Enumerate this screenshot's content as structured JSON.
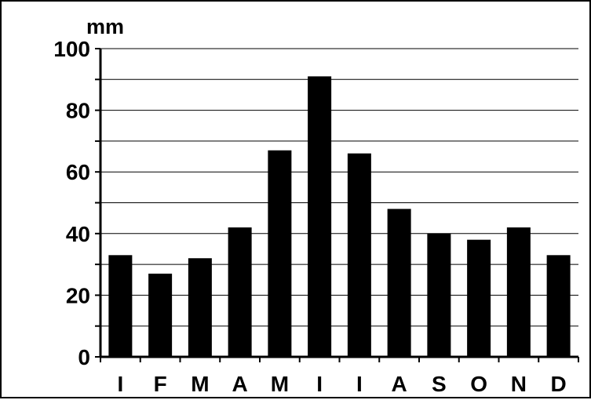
{
  "chart_data": {
    "type": "bar",
    "unit_label": "mm",
    "categories": [
      "I",
      "F",
      "M",
      "A",
      "M",
      "I",
      "I",
      "A",
      "S",
      "O",
      "N",
      "D"
    ],
    "values": [
      33,
      27,
      32,
      42,
      67,
      91,
      66,
      48,
      40,
      38,
      42,
      33
    ],
    "ylim": [
      0,
      100
    ],
    "y_ticks": [
      0,
      20,
      40,
      60,
      80,
      100
    ],
    "y_minor_step": 10,
    "grid": true,
    "legend": "none",
    "bar_color": "#000000",
    "grid_color": "#000000"
  }
}
